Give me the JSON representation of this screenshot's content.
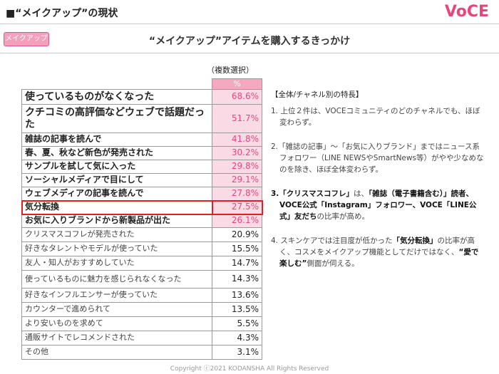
{
  "header": {
    "title": "■“メイクアップ”の現状",
    "logo": "VoCE"
  },
  "tag": "メイクアップ",
  "subtitle": "“メイクアップ”アイテムを購入するきっかけ",
  "table": {
    "note": "（複数選択）",
    "column": "%",
    "rows": [
      {
        "label": "使っているものがなくなった",
        "value": "68.6%",
        "emphasis": true,
        "large": true
      },
      {
        "label": "クチコミの高評価などウェブで話題だった",
        "value": "51.7%",
        "emphasis": true,
        "large": true
      },
      {
        "label": "雑誌の記事を読んで",
        "value": "41.8%",
        "emphasis": true
      },
      {
        "label": "春、夏、秋など新色が発売された",
        "value": "30.2%",
        "emphasis": true
      },
      {
        "label": "サンプルを試して気に入った",
        "value": "29.8%",
        "emphasis": true
      },
      {
        "label": "ソーシャルメディアで目にして",
        "value": "29.1%",
        "emphasis": true
      },
      {
        "label": "ウェブメディアの記事を読んで",
        "value": "27.8%",
        "emphasis": true
      },
      {
        "label": "気分転換",
        "value": "27.5%",
        "emphasis": true,
        "boxed": true
      },
      {
        "label": "お気に入りブランドから新製品が出た",
        "value": "26.1%",
        "emphasis": true
      },
      {
        "label": "クリスマスコフレが発売された",
        "value": "20.9%"
      },
      {
        "label": "好きなタレントやモデルが使っていた",
        "value": "15.5%"
      },
      {
        "label": "友人・知人がおすすめしていた",
        "value": "14.7%"
      },
      {
        "label": "使っているものに魅力を感じられなくなった",
        "value": "14.3%",
        "tall": true
      },
      {
        "label": "好きなインフルエンサーが使っていた",
        "value": "13.6%"
      },
      {
        "label": "カウンターで進められて",
        "value": "13.5%"
      },
      {
        "label": "より安いものを求めて",
        "value": "5.5%"
      },
      {
        "label": "通販サイトでレコメンドされた",
        "value": "4.3%"
      },
      {
        "label": "その他",
        "value": "3.1%"
      }
    ]
  },
  "notes": {
    "heading": "【全体/チャネル別の特長】",
    "items": [
      [
        {
          "text": "1. 上位２件は、VOCEコミュニティのどのチャネルでも、ほぼ変わらず。"
        }
      ],
      [
        {
          "text": "2.「雑誌の記事」～「お気に入りブランド」まではニュース系フォロワー（LINE NEWSやSmartNews等）がやや少なめなのを除き、ほぼ全体変わらず。"
        }
      ],
      [
        {
          "text": "3.「クリスマスコフレ」",
          "bold": true
        },
        {
          "text": "は、"
        },
        {
          "text": "「雑誌（電子書籍含む）」読者、VOCE公式「Instagram」フォロワー、VOCE「LINE公式」友だち",
          "bold": true
        },
        {
          "text": "の比率が高め。"
        }
      ],
      [
        {
          "text": "4. スキンケアでは注目度が低かった"
        },
        {
          "text": "「気分転換」",
          "bold": true
        },
        {
          "text": "の比率が高く、コスメをメイクアップ機能としてだけではなく、"
        },
        {
          "text": "“愛で楽しむ”",
          "bold": true
        },
        {
          "text": "側面が伺える。"
        }
      ]
    ]
  },
  "footer": "Copyright ⓒ2021 KODANSHA All Rights Reserved"
}
